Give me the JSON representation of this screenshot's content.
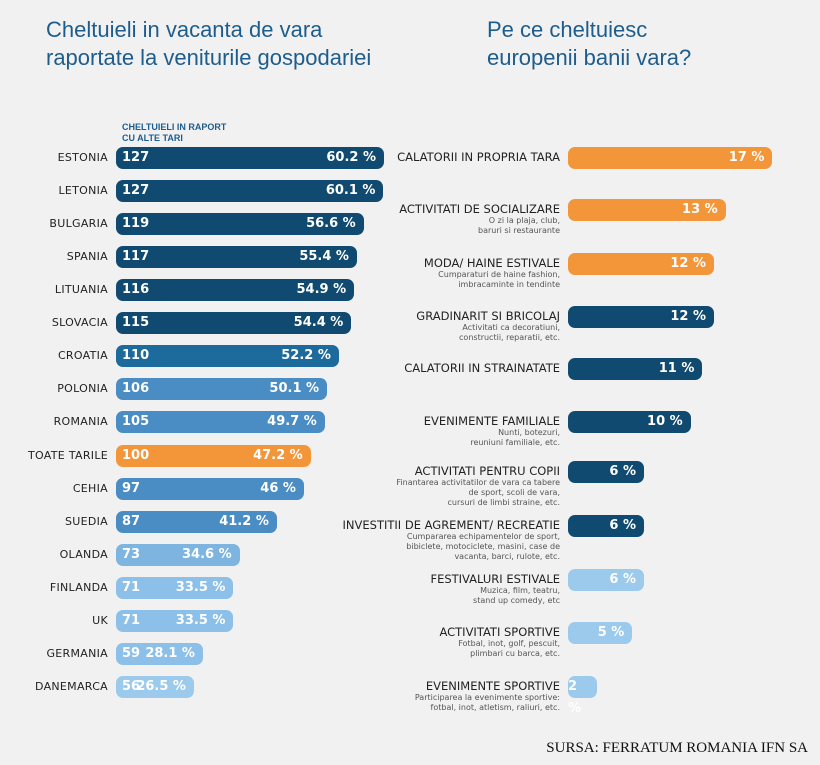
{
  "chart_data": [
    {
      "type": "bar",
      "orientation": "horizontal",
      "title": "Cheltuieli in vacanta de vara\nraportate la veniturile gospodariei",
      "index_label": "CHELTUIELI IN RAPORT\nCU ALTE TARI",
      "categories": [
        "ESTONIA",
        "LETONIA",
        "BULGARIA",
        "SPANIA",
        "LITUANIA",
        "SLOVACIA",
        "CROATIA",
        "POLONIA",
        "ROMANIA",
        "TOATE TARILE",
        "CEHIA",
        "SUEDIA",
        "OLANDA",
        "FINLANDA",
        "UK",
        "GERMANIA",
        "DANEMARCA"
      ],
      "index": [
        127,
        127,
        119,
        117,
        116,
        115,
        110,
        106,
        105,
        100,
        97,
        87,
        73,
        71,
        71,
        59,
        56
      ],
      "values": [
        60.2,
        60.1,
        56.6,
        55.4,
        54.9,
        54.4,
        52.2,
        50.1,
        49.7,
        47.2,
        46,
        41.2,
        34.6,
        33.5,
        33.5,
        28.1,
        26.5
      ],
      "value_labels": [
        "60.2 %",
        "60.1 %",
        "56.6 %",
        "55.4 %",
        "54.9 %",
        "54.4 %",
        "52.2 %",
        "50.1 %",
        "49.7 %",
        "47.2 %",
        "46 %",
        "41.2 %",
        "34.6 %",
        "33.5 %",
        "33.5 %",
        "28.1 %",
        "26.5 %"
      ],
      "colors": [
        "#114a70",
        "#114a70",
        "#114a70",
        "#114a70",
        "#114a70",
        "#114a70",
        "#1d6a9c",
        "#4a8cc4",
        "#4a8cc4",
        "#f3963a",
        "#4a8cc4",
        "#4a8cc4",
        "#7db4e0",
        "#8cc0e8",
        "#8cc0e8",
        "#8cc0e8",
        "#9ccaec"
      ]
    },
    {
      "type": "bar",
      "orientation": "horizontal",
      "title": "Pe ce cheltuiesc\neuropenii banii vara?",
      "categories": [
        "CALATORII IN PROPRIA TARA",
        "ACTIVITATI DE SOCIALIZARE",
        "MODA/ HAINE ESTIVALE",
        "GRADINARIT SI BRICOLAJ",
        "CALATORII IN STRAINATATE",
        "EVENIMENTE FAMILIALE",
        "ACTIVITATI PENTRU COPII",
        "INVESTITII DE AGREMENT/ RECREATIE",
        "FESTIVALURI ESTIVALE",
        "ACTIVITATI SPORTIVE",
        "EVENIMENTE SPORTIVE"
      ],
      "descriptions": [
        "",
        "O zi la plaja, club,\nbaruri si restaurante",
        "Cumparaturi de haine fashion,\nimbracaminte in tendinte",
        "Activitati ca decoratiuni,\nconstructii, reparatii, etc.",
        "",
        "Nunti, botezuri,\nreuniuni familiale, etc.",
        "Finantarea activitatilor de vara ca tabere\nde sport, scoli de vara,\ncursuri de limbi straine, etc.",
        "Cumpararea echipamentelor de sport,\nbibiclete, motociclete, masini, case de\nvacanta, barci, rulote, etc.",
        "Muzica, film, teatru,\nstand up comedy, etc",
        "Fotbal, inot, golf, pescuit,\nplimbari cu barca, etc.",
        "Participarea la evenimente sportive:\nfotbal, inot, atletism, raliuri, etc."
      ],
      "values": [
        17,
        13,
        12,
        12,
        11,
        10,
        6,
        6,
        6,
        5,
        2
      ],
      "value_labels": [
        "17 %",
        "13 %",
        "12 %",
        "12 %",
        "11 %",
        "10 %",
        "6 %",
        "6 %",
        "6 %",
        "5 %",
        "2 %"
      ],
      "colors": [
        "#f3963a",
        "#f3963a",
        "#f3963a",
        "#114a70",
        "#114a70",
        "#114a70",
        "#114a70",
        "#114a70",
        "#9ccaec",
        "#9ccaec",
        "#9ccaec"
      ]
    }
  ],
  "source": "SURSA: FERRATUM ROMANIA IFN SA"
}
